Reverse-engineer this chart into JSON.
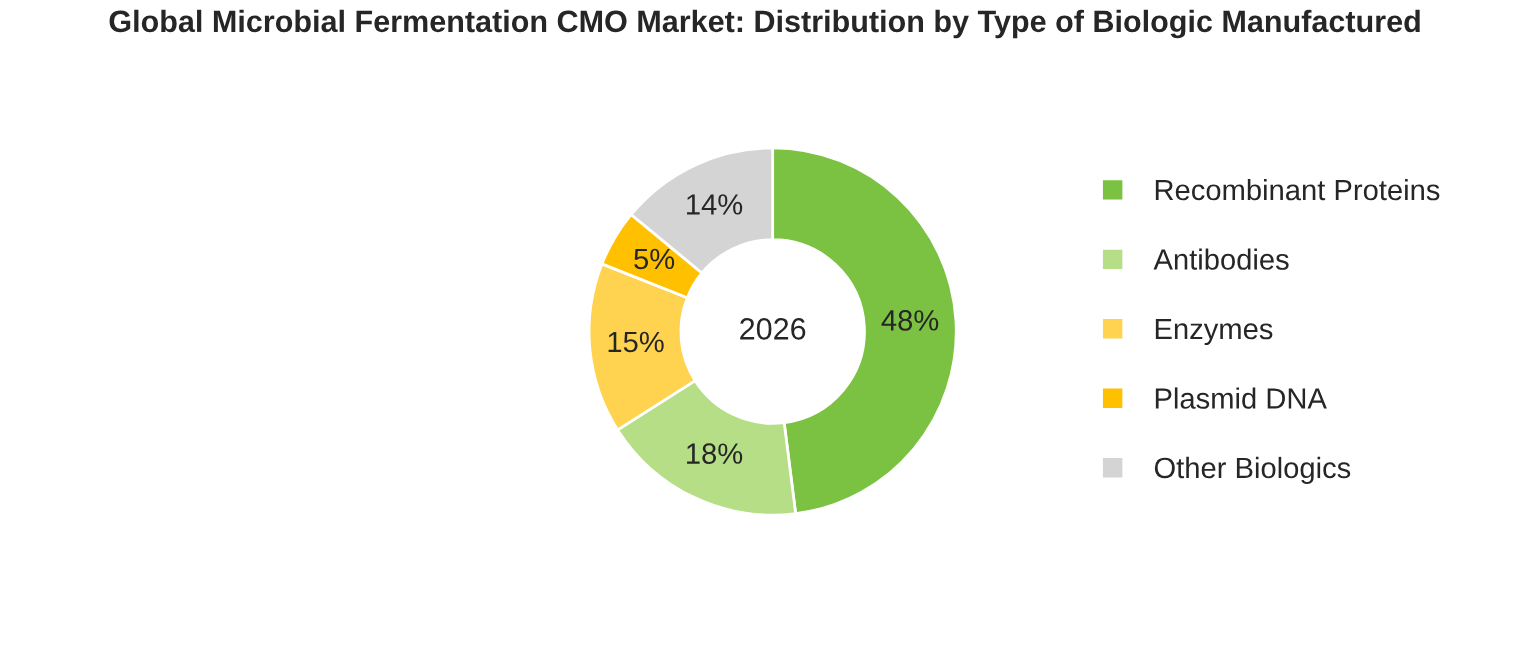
{
  "chart_data": {
    "type": "donut",
    "title": "Global Microbial Fermentation CMO Market: Distribution by Type of Biologic Manufactured",
    "categories": [
      "Recombinant Proteins",
      "Antibodies",
      "Enzymes",
      "Plasmid DNA",
      "Other Biologics"
    ],
    "values": [
      48,
      18,
      15,
      5,
      14
    ],
    "value_labels": [
      "48%",
      "18%",
      "15%",
      "5%",
      "14%"
    ],
    "colors": [
      "#7cc242",
      "#b6de87",
      "#ffd24f",
      "#ffc000",
      "#d4d4d4"
    ],
    "annotations": [
      "2026"
    ],
    "legend": "right"
  }
}
